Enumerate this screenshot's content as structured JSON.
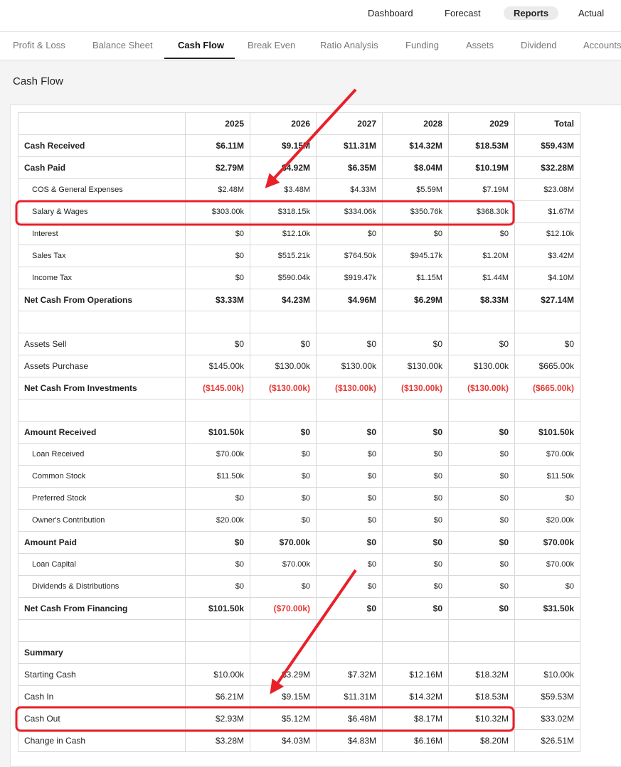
{
  "nav": [
    "Dashboard",
    "Forecast",
    "Reports",
    "Actual"
  ],
  "tabs": [
    "Profit & Loss",
    "Balance Sheet",
    "Cash Flow",
    "Break Even",
    "Ratio Analysis",
    "Funding",
    "Assets",
    "Dividend",
    "Accounts"
  ],
  "section_title": "Cash Flow",
  "table": {
    "header": [
      "2025",
      "2026",
      "2027",
      "2028",
      "2029",
      "Total"
    ],
    "rows": [
      {
        "kind": "bold",
        "label": "Cash Received",
        "values": [
          "$6.11M",
          "$9.15M",
          "$11.31M",
          "$14.32M",
          "$18.53M",
          "$59.43M"
        ]
      },
      {
        "kind": "bold",
        "label": "Cash Paid",
        "values": [
          "$2.79M",
          "$4.92M",
          "$6.35M",
          "$8.04M",
          "$10.19M",
          "$32.28M"
        ]
      },
      {
        "kind": "indent",
        "label": "COS & General Expenses",
        "values": [
          "$2.48M",
          "$3.48M",
          "$4.33M",
          "$5.59M",
          "$7.19M",
          "$23.08M"
        ]
      },
      {
        "kind": "indent",
        "label": "Salary & Wages",
        "values": [
          "$303.00k",
          "$318.15k",
          "$334.06k",
          "$350.76k",
          "$368.30k",
          "$1.67M"
        ]
      },
      {
        "kind": "indent",
        "label": "Interest",
        "values": [
          "$0",
          "$12.10k",
          "$0",
          "$0",
          "$0",
          "$12.10k"
        ]
      },
      {
        "kind": "indent",
        "label": "Sales Tax",
        "values": [
          "$0",
          "$515.21k",
          "$764.50k",
          "$945.17k",
          "$1.20M",
          "$3.42M"
        ]
      },
      {
        "kind": "indent",
        "label": "Income Tax",
        "values": [
          "$0",
          "$590.04k",
          "$919.47k",
          "$1.15M",
          "$1.44M",
          "$4.10M"
        ]
      },
      {
        "kind": "bold",
        "label": "Net Cash From Operations",
        "values": [
          "$3.33M",
          "$4.23M",
          "$4.96M",
          "$6.29M",
          "$8.33M",
          "$27.14M"
        ]
      },
      {
        "kind": "spacer"
      },
      {
        "kind": "plain",
        "label": "Assets Sell",
        "values": [
          "$0",
          "$0",
          "$0",
          "$0",
          "$0",
          "$0"
        ]
      },
      {
        "kind": "plain",
        "label": "Assets Purchase",
        "values": [
          "$145.00k",
          "$130.00k",
          "$130.00k",
          "$130.00k",
          "$130.00k",
          "$665.00k"
        ]
      },
      {
        "kind": "bold",
        "label": "Net Cash From Investments",
        "values": [
          "($145.00k)",
          "($130.00k)",
          "($130.00k)",
          "($130.00k)",
          "($130.00k)",
          "($665.00k)"
        ]
      },
      {
        "kind": "spacer"
      },
      {
        "kind": "bold",
        "label": "Amount Received",
        "values": [
          "$101.50k",
          "$0",
          "$0",
          "$0",
          "$0",
          "$101.50k"
        ]
      },
      {
        "kind": "indent",
        "label": "Loan Received",
        "values": [
          "$70.00k",
          "$0",
          "$0",
          "$0",
          "$0",
          "$70.00k"
        ]
      },
      {
        "kind": "indent",
        "label": "Common Stock",
        "values": [
          "$11.50k",
          "$0",
          "$0",
          "$0",
          "$0",
          "$11.50k"
        ]
      },
      {
        "kind": "indent",
        "label": "Preferred Stock",
        "values": [
          "$0",
          "$0",
          "$0",
          "$0",
          "$0",
          "$0"
        ]
      },
      {
        "kind": "indent",
        "label": "Owner's Contribution",
        "values": [
          "$20.00k",
          "$0",
          "$0",
          "$0",
          "$0",
          "$20.00k"
        ]
      },
      {
        "kind": "bold",
        "label": "Amount Paid",
        "values": [
          "$0",
          "$70.00k",
          "$0",
          "$0",
          "$0",
          "$70.00k"
        ]
      },
      {
        "kind": "indent",
        "label": "Loan Capital",
        "values": [
          "$0",
          "$70.00k",
          "$0",
          "$0",
          "$0",
          "$70.00k"
        ]
      },
      {
        "kind": "indent",
        "label": "Dividends & Distributions",
        "values": [
          "$0",
          "$0",
          "$0",
          "$0",
          "$0",
          "$0"
        ]
      },
      {
        "kind": "bold",
        "label": "Net Cash From Financing",
        "values": [
          "$101.50k",
          "($70.00k)",
          "$0",
          "$0",
          "$0",
          "$31.50k"
        ]
      },
      {
        "kind": "spacer"
      },
      {
        "kind": "bold",
        "label": "Summary"
      },
      {
        "kind": "plain",
        "label": "Starting Cash",
        "values": [
          "$10.00k",
          "$3.29M",
          "$7.32M",
          "$12.16M",
          "$18.32M",
          "$10.00k"
        ]
      },
      {
        "kind": "plain",
        "label": "Cash In",
        "values": [
          "$6.21M",
          "$9.15M",
          "$11.31M",
          "$14.32M",
          "$18.53M",
          "$59.53M"
        ]
      },
      {
        "kind": "plain",
        "label": "Cash Out",
        "values": [
          "$2.93M",
          "$5.12M",
          "$6.48M",
          "$8.17M",
          "$10.32M",
          "$33.02M"
        ]
      },
      {
        "kind": "plain",
        "label": "Change in Cash",
        "values": [
          "$3.28M",
          "$4.03M",
          "$4.83M",
          "$6.16M",
          "$8.20M",
          "$26.51M"
        ]
      }
    ]
  }
}
